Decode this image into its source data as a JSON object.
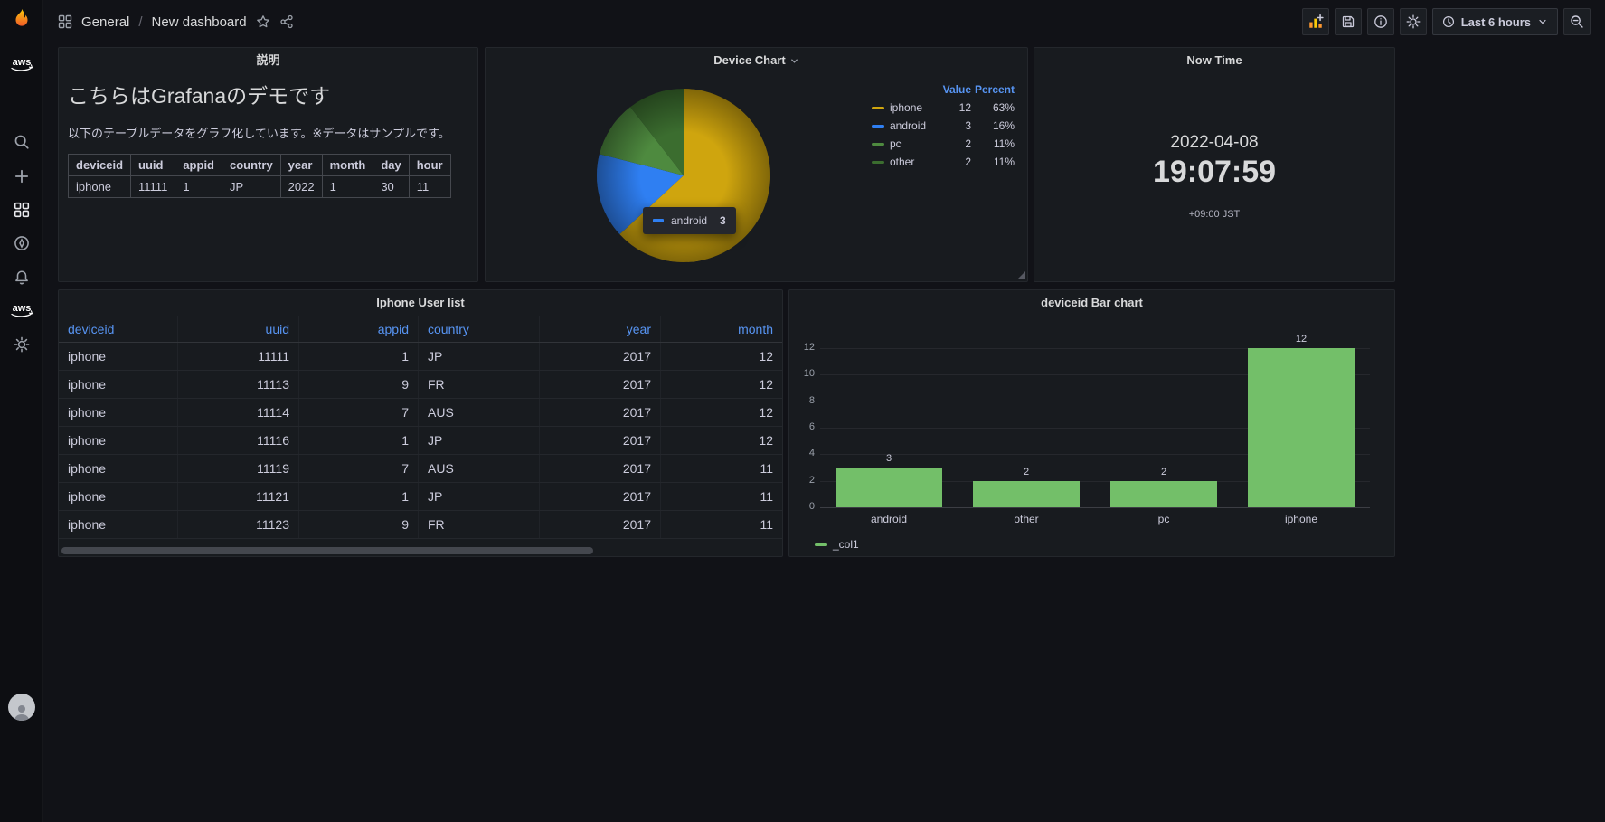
{
  "app": {
    "name": "Grafana"
  },
  "header": {
    "breadcrumb_section": "General",
    "breadcrumb_separator": "/",
    "breadcrumb_page": "New dashboard",
    "time_range_label": "Last 6 hours"
  },
  "sidebar": {
    "items": [
      {
        "name": "grafana-logo"
      },
      {
        "name": "aws-logo"
      },
      {
        "name": "search"
      },
      {
        "name": "create"
      },
      {
        "name": "dashboards"
      },
      {
        "name": "explore"
      },
      {
        "name": "alerting"
      },
      {
        "name": "aws-services"
      },
      {
        "name": "configuration"
      },
      {
        "name": "user-avatar"
      }
    ]
  },
  "panels": {
    "description": {
      "title": "説明",
      "heading": "こちらはGrafanaのデモです",
      "body": "以下のテーブルデータをグラフ化しています。※データはサンプルです。",
      "table": {
        "headers": [
          "deviceid",
          "uuid",
          "appid",
          "country",
          "year",
          "month",
          "day",
          "hour"
        ],
        "rows": [
          [
            "iphone",
            "11111",
            "1",
            "JP",
            "2022",
            "1",
            "30",
            "11"
          ]
        ]
      }
    },
    "device_chart": {
      "title": "Device Chart",
      "legend_headers": {
        "value": "Value",
        "percent": "Percent"
      },
      "tooltip": {
        "label": "android",
        "value": "3"
      }
    },
    "now_time": {
      "title": "Now Time",
      "date": "2022-04-08",
      "time": "19:07:59",
      "timezone": "+09:00 JST"
    },
    "iphone_user_list": {
      "title": "Iphone User list",
      "headers": [
        {
          "label": "deviceid",
          "align": "left"
        },
        {
          "label": "uuid",
          "align": "right"
        },
        {
          "label": "appid",
          "align": "right"
        },
        {
          "label": "country",
          "align": "left"
        },
        {
          "label": "year",
          "align": "right"
        },
        {
          "label": "month",
          "align": "right"
        }
      ],
      "rows": [
        [
          "iphone",
          "11111",
          "1",
          "JP",
          "2017",
          "12"
        ],
        [
          "iphone",
          "11113",
          "9",
          "FR",
          "2017",
          "12"
        ],
        [
          "iphone",
          "11114",
          "7",
          "AUS",
          "2017",
          "12"
        ],
        [
          "iphone",
          "11116",
          "1",
          "JP",
          "2017",
          "12"
        ],
        [
          "iphone",
          "11119",
          "7",
          "AUS",
          "2017",
          "11"
        ],
        [
          "iphone",
          "11121",
          "1",
          "JP",
          "2017",
          "11"
        ],
        [
          "iphone",
          "11123",
          "9",
          "FR",
          "2017",
          "11"
        ]
      ]
    },
    "bar_chart": {
      "title": "deviceid Bar chart"
    }
  },
  "chart_data": [
    {
      "type": "pie",
      "title": "Device Chart",
      "labels": [
        "iphone",
        "android",
        "pc",
        "other"
      ],
      "values": [
        12,
        3,
        2,
        2
      ],
      "percents": [
        "63%",
        "16%",
        "11%",
        "11%"
      ],
      "colors": [
        "#cfa50e",
        "#2f7ff2",
        "#4e8a3f",
        "#3b6d2f"
      ],
      "legend_position": "right"
    },
    {
      "type": "bar",
      "title": "deviceid Bar chart",
      "categories": [
        "android",
        "other",
        "pc",
        "iphone"
      ],
      "values": [
        3,
        2,
        2,
        12
      ],
      "series_name": "_col1",
      "bar_color": "#73bf69",
      "ylim": [
        0,
        12
      ],
      "yticks": [
        0,
        2,
        4,
        6,
        8,
        10,
        12
      ],
      "grid": true,
      "legend_position": "bottom-left"
    }
  ],
  "colors": {
    "page_bg": "#111217",
    "panel_bg": "#181b1f",
    "text": "#ccccdc",
    "link_blue": "#5794f2",
    "bar_green": "#73bf69",
    "accent_orange": "#ff9830"
  }
}
